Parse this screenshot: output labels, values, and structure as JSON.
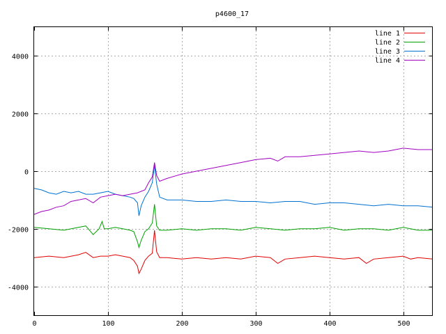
{
  "chart_data": {
    "type": "line",
    "title": "p4600_17",
    "xlabel": "",
    "ylabel": "",
    "xlim": [
      0,
      540
    ],
    "ylim": [
      -5000,
      5000
    ],
    "grid": true,
    "legend_position": "top-right",
    "x_ticks": [
      0,
      100,
      200,
      300,
      400,
      500
    ],
    "y_ticks": [
      -4000,
      -2000,
      0,
      2000,
      4000
    ],
    "series": [
      {
        "name": "line 1",
        "color": "#e00000",
        "x": [
          0,
          20,
          40,
          60,
          70,
          80,
          90,
          100,
          110,
          120,
          130,
          135,
          140,
          142,
          145,
          150,
          155,
          160,
          163,
          166,
          170,
          180,
          200,
          220,
          240,
          260,
          280,
          300,
          320,
          330,
          340,
          360,
          380,
          400,
          420,
          440,
          450,
          460,
          480,
          500,
          510,
          520,
          540
        ],
        "values": [
          -3000,
          -2950,
          -3000,
          -2900,
          -2820,
          -3000,
          -2950,
          -2950,
          -2900,
          -2950,
          -3000,
          -3100,
          -3300,
          -3550,
          -3400,
          -3100,
          -2950,
          -2850,
          -2050,
          -2800,
          -3000,
          -3000,
          -3050,
          -3000,
          -3050,
          -3000,
          -3050,
          -2950,
          -3000,
          -3200,
          -3050,
          -3000,
          -2950,
          -3000,
          -3050,
          -3000,
          -3200,
          -3050,
          -3000,
          -2950,
          -3050,
          -3000,
          -3050
        ]
      },
      {
        "name": "line 2",
        "color": "#00a000",
        "x": [
          0,
          20,
          40,
          60,
          70,
          80,
          88,
          92,
          95,
          100,
          110,
          120,
          130,
          135,
          140,
          142,
          145,
          150,
          155,
          160,
          163,
          166,
          170,
          180,
          200,
          220,
          240,
          260,
          280,
          300,
          320,
          340,
          360,
          380,
          400,
          420,
          440,
          460,
          480,
          500,
          520,
          540
        ],
        "values": [
          -1950,
          -2000,
          -2050,
          -1950,
          -1900,
          -2200,
          -2000,
          -1750,
          -2000,
          -2000,
          -1950,
          -2000,
          -2050,
          -2100,
          -2450,
          -2650,
          -2400,
          -2100,
          -2000,
          -1800,
          -1150,
          -1900,
          -2050,
          -2050,
          -2000,
          -2050,
          -2000,
          -2000,
          -2050,
          -1950,
          -2000,
          -2050,
          -2000,
          -2000,
          -1950,
          -2050,
          -2000,
          -2000,
          -2050,
          -1950,
          -2050,
          -2050
        ]
      },
      {
        "name": "line 3",
        "color": "#0070d0",
        "x": [
          0,
          10,
          20,
          30,
          40,
          50,
          60,
          70,
          80,
          90,
          100,
          110,
          120,
          130,
          135,
          140,
          142,
          145,
          150,
          155,
          160,
          163,
          166,
          170,
          180,
          200,
          220,
          240,
          260,
          280,
          300,
          320,
          340,
          360,
          380,
          400,
          420,
          440,
          460,
          480,
          500,
          520,
          540
        ],
        "values": [
          -600,
          -650,
          -750,
          -800,
          -700,
          -750,
          -700,
          -800,
          -800,
          -750,
          -700,
          -800,
          -850,
          -900,
          -950,
          -1100,
          -1550,
          -1200,
          -900,
          -700,
          -400,
          200,
          -450,
          -900,
          -1000,
          -1000,
          -1050,
          -1050,
          -1000,
          -1050,
          -1050,
          -1100,
          -1050,
          -1050,
          -1150,
          -1100,
          -1100,
          -1150,
          -1200,
          -1150,
          -1200,
          -1200,
          -1250
        ]
      },
      {
        "name": "line 4",
        "color": "#a000c0",
        "x": [
          0,
          10,
          20,
          30,
          40,
          50,
          60,
          70,
          80,
          90,
          100,
          110,
          120,
          130,
          140,
          150,
          155,
          160,
          163,
          166,
          170,
          180,
          200,
          220,
          240,
          260,
          280,
          300,
          320,
          330,
          340,
          360,
          380,
          400,
          420,
          440,
          460,
          480,
          500,
          520,
          540
        ],
        "values": [
          -1500,
          -1400,
          -1350,
          -1250,
          -1200,
          -1050,
          -1000,
          -950,
          -1100,
          -900,
          -850,
          -800,
          -850,
          -800,
          -750,
          -650,
          -400,
          -200,
          300,
          -150,
          -350,
          -250,
          -100,
          0,
          100,
          200,
          300,
          400,
          450,
          350,
          500,
          500,
          550,
          600,
          650,
          700,
          650,
          700,
          800,
          750,
          750
        ]
      }
    ]
  }
}
